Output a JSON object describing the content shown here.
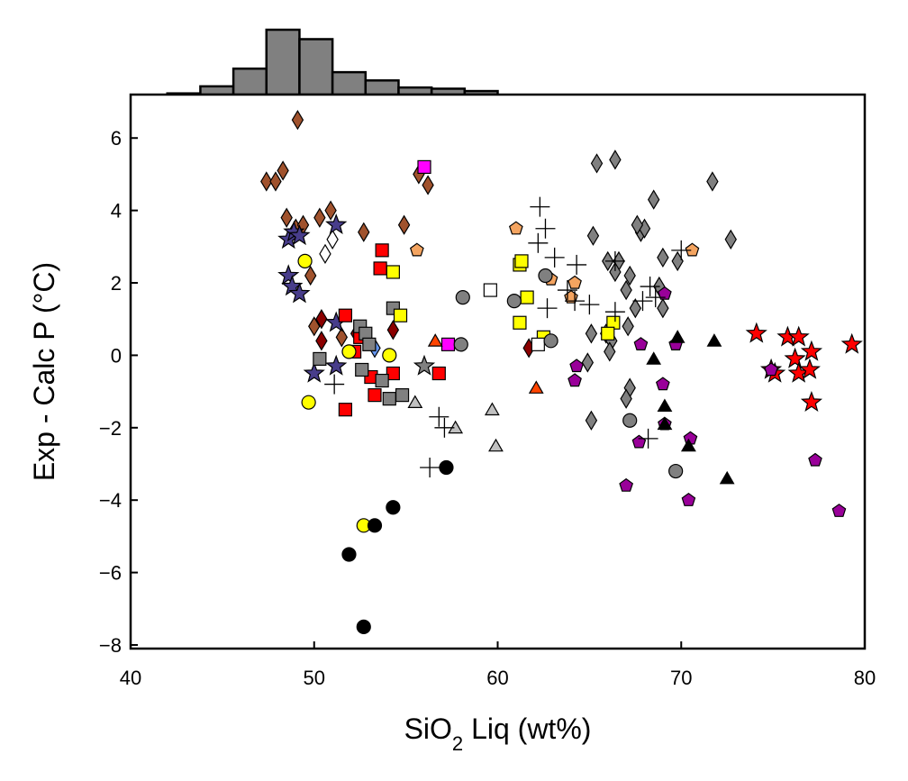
{
  "chart_data": {
    "type": "scatter",
    "title": "",
    "xlabel": "SiO",
    "xlabel_sub": "2",
    "xlabel_rest": " Liq (wt%)",
    "ylabel": "Exp - Calc P (°C)",
    "xlim": [
      40,
      80
    ],
    "ylim": [
      -8.1,
      7.2
    ],
    "x_ticks": [
      40,
      50,
      60,
      70,
      80
    ],
    "y_ticks": [
      -8,
      -6,
      -4,
      -2,
      0,
      2,
      4,
      6
    ],
    "x_tick_labels": [
      "40",
      "50",
      "60",
      "70",
      "80"
    ],
    "y_tick_labels": [
      "−8",
      "−6",
      "−4",
      "−2",
      "0",
      "2",
      "4",
      "6"
    ],
    "grid": false,
    "histogram": {
      "bin_edges": [
        42,
        43.8,
        45.6,
        47.4,
        49.2,
        51,
        52.8,
        54.6,
        56.4,
        58.2,
        60
      ],
      "counts": [
        1,
        7,
        22,
        55,
        47,
        19,
        12,
        6,
        5,
        3
      ],
      "color": "#808080"
    },
    "series": [
      {
        "marker": "diamond",
        "color": "#a0522d",
        "points": [
          [
            49.1,
            6.5
          ],
          [
            47.4,
            4.8
          ],
          [
            47.9,
            4.8
          ],
          [
            48.3,
            5.1
          ],
          [
            48.5,
            3.8
          ],
          [
            49.0,
            3.5
          ],
          [
            49.4,
            3.6
          ],
          [
            50.3,
            3.8
          ],
          [
            50.9,
            4.0
          ],
          [
            52.7,
            3.4
          ],
          [
            54.9,
            3.6
          ],
          [
            55.7,
            5.0
          ],
          [
            56.2,
            4.7
          ],
          [
            49.8,
            2.2
          ],
          [
            50.0,
            0.8
          ],
          [
            51.5,
            0.5
          ]
        ]
      },
      {
        "marker": "diamond",
        "color": "#8b0000",
        "points": [
          [
            50.4,
            1.0
          ],
          [
            50.4,
            0.4
          ],
          [
            52.3,
            0.6
          ],
          [
            54.3,
            0.7
          ],
          [
            61.7,
            0.2
          ]
        ]
      },
      {
        "marker": "diamond",
        "color": "#ffffff",
        "points": [
          [
            50.6,
            2.8
          ],
          [
            51.0,
            3.2
          ]
        ]
      },
      {
        "marker": "diamond",
        "color": "#6495ed",
        "points": [
          [
            53.3,
            0.2
          ]
        ]
      },
      {
        "marker": "diamond",
        "color": "#808080",
        "points": [
          [
            65.4,
            5.3
          ],
          [
            66.4,
            5.4
          ],
          [
            71.7,
            4.8
          ],
          [
            68.5,
            4.3
          ],
          [
            65.2,
            3.3
          ],
          [
            67.8,
            3.4
          ],
          [
            68.0,
            3.5
          ],
          [
            67.6,
            3.6
          ],
          [
            72.7,
            3.2
          ],
          [
            66.0,
            2.6
          ],
          [
            66.6,
            2.6
          ],
          [
            69.8,
            2.6
          ],
          [
            69.0,
            2.7
          ],
          [
            66.4,
            2.3
          ],
          [
            67.2,
            2.2
          ],
          [
            67.0,
            1.8
          ],
          [
            68.8,
            1.9
          ],
          [
            67.5,
            1.3
          ],
          [
            69.0,
            1.3
          ],
          [
            67.1,
            0.8
          ],
          [
            65.9,
            0.6
          ],
          [
            65.1,
            0.6
          ],
          [
            66.2,
            0.4
          ],
          [
            66.1,
            0.1
          ],
          [
            64.9,
            -0.2
          ],
          [
            67.2,
            -0.9
          ],
          [
            67.0,
            -1.2
          ],
          [
            65.1,
            -1.8
          ]
        ]
      },
      {
        "marker": "star",
        "color": "#483d8b",
        "points": [
          [
            48.6,
            3.2
          ],
          [
            48.9,
            3.4
          ],
          [
            49.2,
            3.3
          ],
          [
            51.2,
            3.6
          ],
          [
            48.6,
            2.2
          ],
          [
            48.8,
            1.9
          ],
          [
            49.2,
            1.7
          ],
          [
            51.2,
            0.9
          ],
          [
            51.2,
            -0.3
          ],
          [
            50.0,
            -0.5
          ]
        ]
      },
      {
        "marker": "star",
        "color": "#808080",
        "points": [
          [
            56.0,
            -0.3
          ]
        ]
      },
      {
        "marker": "star",
        "color": "#ff0000",
        "points": [
          [
            74.1,
            0.6
          ],
          [
            75.8,
            0.5
          ],
          [
            76.4,
            0.5
          ],
          [
            77.1,
            0.1
          ],
          [
            76.2,
            -0.1
          ],
          [
            74.9,
            -0.4
          ],
          [
            75.1,
            -0.5
          ],
          [
            76.4,
            -0.5
          ],
          [
            77.0,
            -0.4
          ],
          [
            77.1,
            -1.3
          ],
          [
            79.3,
            0.3
          ]
        ]
      },
      {
        "marker": "square",
        "color": "#ff0000",
        "points": [
          [
            53.7,
            2.9
          ],
          [
            53.6,
            2.4
          ],
          [
            51.7,
            1.1
          ],
          [
            52.5,
            0.5
          ],
          [
            52.2,
            0.1
          ],
          [
            53.1,
            -0.6
          ],
          [
            54.3,
            -0.5
          ],
          [
            53.3,
            -1.1
          ],
          [
            51.7,
            -1.5
          ],
          [
            56.8,
            -0.5
          ]
        ]
      },
      {
        "marker": "square",
        "color": "#808080",
        "points": [
          [
            50.3,
            -0.1
          ],
          [
            52.5,
            0.8
          ],
          [
            52.8,
            0.6
          ],
          [
            53.0,
            0.3
          ],
          [
            52.6,
            -0.4
          ],
          [
            53.7,
            -0.7
          ],
          [
            54.1,
            -1.2
          ],
          [
            54.8,
            -1.1
          ],
          [
            54.3,
            1.3
          ]
        ]
      },
      {
        "marker": "square",
        "color": "#ffff00",
        "points": [
          [
            54.3,
            2.3
          ],
          [
            54.7,
            1.1
          ],
          [
            61.2,
            2.5
          ],
          [
            61.3,
            2.6
          ],
          [
            61.6,
            1.6
          ],
          [
            61.2,
            0.9
          ],
          [
            62.5,
            0.5
          ],
          [
            66.3,
            0.9
          ],
          [
            66.0,
            0.6
          ]
        ]
      },
      {
        "marker": "square",
        "color": "#ff00ff",
        "points": [
          [
            56.0,
            5.2
          ],
          [
            57.3,
            0.3
          ]
        ]
      },
      {
        "marker": "square",
        "color": "#ffffff",
        "points": [
          [
            59.6,
            1.8
          ],
          [
            62.2,
            0.3
          ]
        ]
      },
      {
        "marker": "pentagon",
        "color": "#f4a460",
        "points": [
          [
            55.6,
            2.9
          ],
          [
            61.0,
            3.5
          ],
          [
            62.9,
            2.1
          ],
          [
            64.2,
            2.0
          ],
          [
            64.0,
            1.6
          ],
          [
            70.6,
            2.9
          ]
        ]
      },
      {
        "marker": "pentagon",
        "color": "#990099",
        "points": [
          [
            64.3,
            -0.3
          ],
          [
            64.2,
            -0.7
          ],
          [
            67.8,
            0.3
          ],
          [
            69.7,
            0.3
          ],
          [
            69.1,
            1.7
          ],
          [
            69.0,
            -0.8
          ],
          [
            69.1,
            -1.9
          ],
          [
            67.7,
            -2.4
          ],
          [
            70.5,
            -2.3
          ],
          [
            67.0,
            -3.6
          ],
          [
            70.4,
            -4.0
          ],
          [
            74.9,
            -0.4
          ],
          [
            77.3,
            -2.9
          ],
          [
            78.6,
            -4.3
          ]
        ]
      },
      {
        "marker": "circle",
        "color": "#ffff00",
        "points": [
          [
            49.5,
            2.6
          ],
          [
            49.7,
            -1.3
          ],
          [
            51.9,
            0.1
          ],
          [
            52.7,
            -4.7
          ],
          [
            54.1,
            0.0
          ]
        ]
      },
      {
        "marker": "circle",
        "color": "#808080",
        "points": [
          [
            58.1,
            1.6
          ],
          [
            58.0,
            0.3
          ],
          [
            60.9,
            1.5
          ],
          [
            62.6,
            2.2
          ],
          [
            62.9,
            0.4
          ],
          [
            67.2,
            -1.8
          ],
          [
            69.7,
            -3.2
          ]
        ]
      },
      {
        "marker": "circle",
        "color": "#000000",
        "points": [
          [
            51.9,
            -5.5
          ],
          [
            52.7,
            -7.5
          ],
          [
            53.3,
            -4.7
          ],
          [
            54.3,
            -4.2
          ],
          [
            57.2,
            -3.1
          ]
        ]
      },
      {
        "marker": "triangle",
        "color": "#ff4500",
        "points": [
          [
            56.6,
            0.4
          ],
          [
            62.1,
            -0.9
          ]
        ]
      },
      {
        "marker": "triangle",
        "color": "#c0c0c0",
        "points": [
          [
            55.5,
            -1.3
          ],
          [
            57.7,
            -2.0
          ],
          [
            59.7,
            -1.5
          ],
          [
            59.9,
            -2.5
          ]
        ]
      },
      {
        "marker": "triangle",
        "color": "#000000",
        "points": [
          [
            69.1,
            -1.4
          ],
          [
            69.1,
            -1.9
          ],
          [
            70.4,
            -2.5
          ],
          [
            69.8,
            0.5
          ],
          [
            71.8,
            0.4
          ],
          [
            72.5,
            -3.4
          ],
          [
            68.5,
            -0.1
          ]
        ]
      },
      {
        "marker": "plus",
        "color": "#000000",
        "points": [
          [
            62.3,
            4.1
          ],
          [
            62.6,
            3.5
          ],
          [
            62.2,
            3.1
          ],
          [
            63.1,
            2.7
          ],
          [
            64.3,
            2.5
          ],
          [
            66.4,
            2.6
          ],
          [
            63.8,
            1.8
          ],
          [
            64.2,
            1.5
          ],
          [
            65.0,
            1.4
          ],
          [
            62.7,
            1.3
          ],
          [
            66.4,
            1.2
          ],
          [
            67.9,
            1.5
          ],
          [
            68.3,
            1.9
          ],
          [
            68.6,
            1.6
          ],
          [
            68.2,
            -2.3
          ],
          [
            70.0,
            2.9
          ],
          [
            51.1,
            -0.8
          ],
          [
            56.8,
            -1.7
          ],
          [
            57.1,
            -2.0
          ],
          [
            56.3,
            -3.1
          ]
        ]
      }
    ]
  }
}
